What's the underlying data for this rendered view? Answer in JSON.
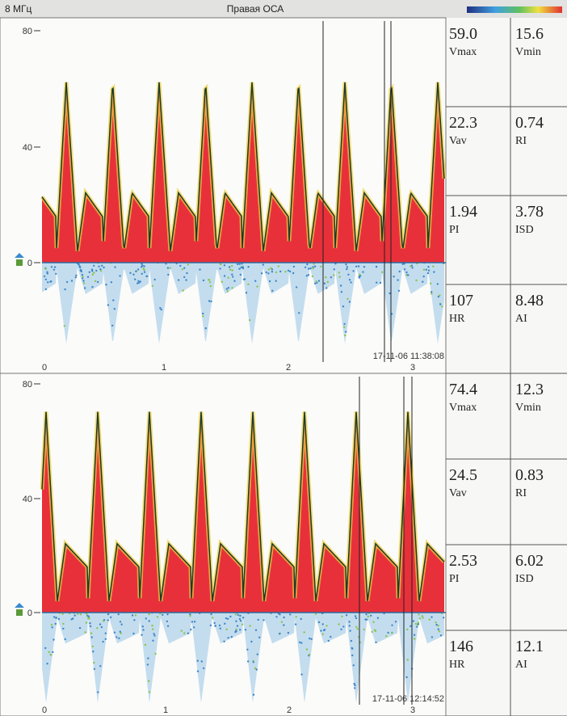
{
  "header": {
    "frequency": "8 МГц",
    "title": "Правая ОСА"
  },
  "panels": [
    {
      "y_ticks": [
        "80",
        "40",
        "0"
      ],
      "x_ticks": [
        "0",
        "1",
        "2",
        "3"
      ],
      "timestamp": "17-11-06 11:38:08",
      "params": [
        {
          "value": "59.0",
          "label": "Vmax"
        },
        {
          "value": "15.6",
          "label": "Vmin"
        },
        {
          "value": "22.3",
          "label": "Vav"
        },
        {
          "value": "0.74",
          "label": "RI"
        },
        {
          "value": "1.94",
          "label": "PI"
        },
        {
          "value": "3.78",
          "label": "ISD"
        },
        {
          "value": "107",
          "label": "HR"
        },
        {
          "value": "8.48",
          "label": "AI"
        }
      ]
    },
    {
      "y_ticks": [
        "80",
        "40",
        "0"
      ],
      "x_ticks": [
        "0",
        "1",
        "2",
        "3"
      ],
      "timestamp": "17-11-06 12:14:52",
      "params": [
        {
          "value": "74.4",
          "label": "Vmax"
        },
        {
          "value": "12.3",
          "label": "Vmin"
        },
        {
          "value": "24.5",
          "label": "Vav"
        },
        {
          "value": "0.83",
          "label": "RI"
        },
        {
          "value": "2.53",
          "label": "PI"
        },
        {
          "value": "6.02",
          "label": "ISD"
        },
        {
          "value": "146",
          "label": "HR"
        },
        {
          "value": "12.1",
          "label": "AI"
        }
      ]
    }
  ]
}
